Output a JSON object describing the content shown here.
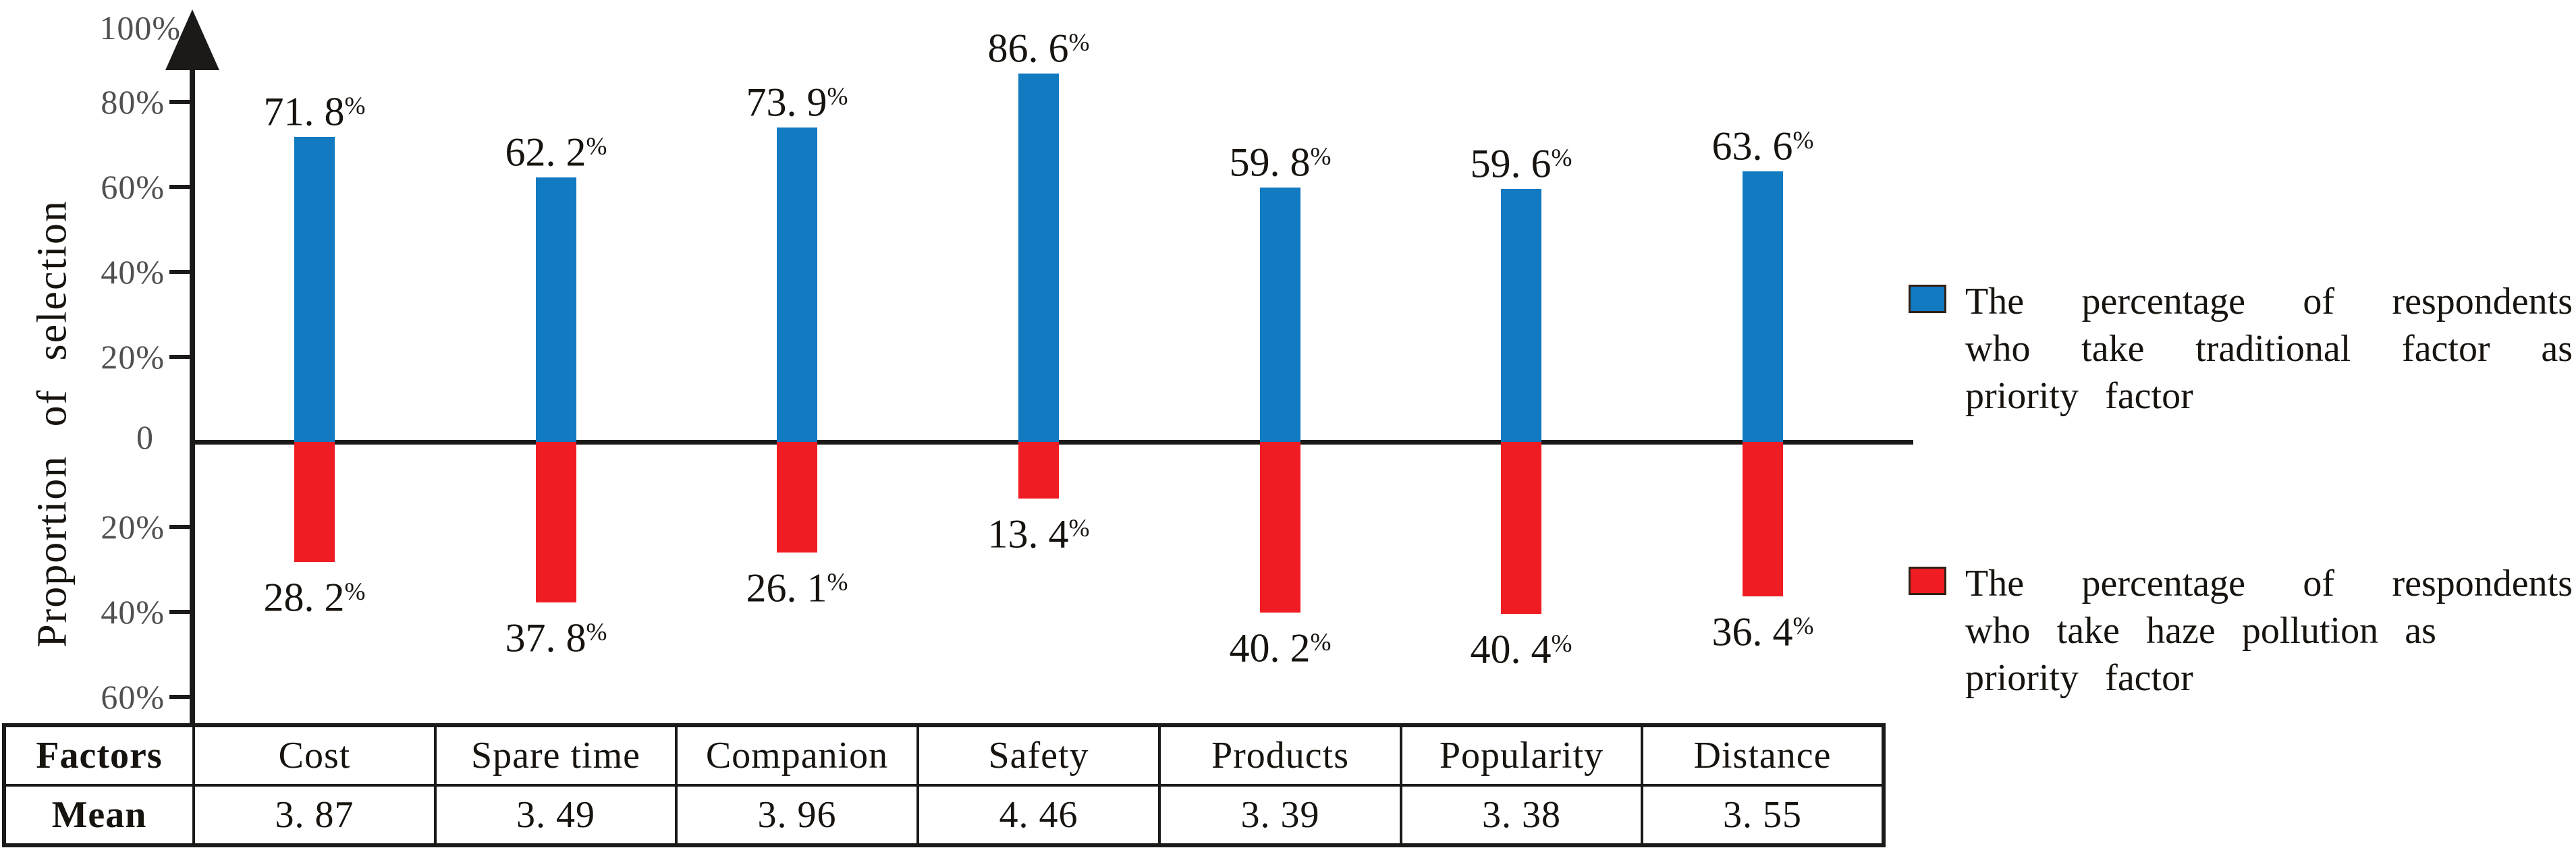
{
  "colors": {
    "traditional_blue": "#117ac0",
    "haze_red": "#f01c23",
    "axis_black": "#1c1a19",
    "tick_gray": "#505052"
  },
  "chart_data": {
    "type": "bar",
    "title": "",
    "xlabel": "",
    "ylabel": "Proportion of selection",
    "ylim": [
      -60,
      100
    ],
    "grid": false,
    "legend_position": "right",
    "categories": [
      "Cost",
      "Spare time",
      "Companion",
      "Safety",
      "Products",
      "Popularity",
      "Distance"
    ],
    "series": [
      {
        "name": "The percentage of respondents who take traditional factor as priority factor",
        "direction": "up",
        "values": [
          71.8,
          62.2,
          73.9,
          86.6,
          59.8,
          59.6,
          63.6
        ],
        "labels": [
          "71. 8%",
          "62. 2%",
          "73. 9%",
          "86. 6%",
          "59. 8%",
          "59. 6%",
          "63. 6%"
        ]
      },
      {
        "name": "The percentage of respondents who take haze pollution as priority factor",
        "direction": "down",
        "values": [
          28.2,
          37.8,
          26.1,
          13.4,
          40.2,
          40.4,
          36.4
        ],
        "labels": [
          "28. 2%",
          "37. 8%",
          "26. 1%",
          "13. 4%",
          "40. 2%",
          "40. 4%",
          "36. 4%"
        ]
      }
    ],
    "means": [
      3.87,
      3.49,
      3.96,
      4.46,
      3.39,
      3.38,
      3.55
    ],
    "y_axis": {
      "top_label": "100%",
      "zero_label": "0",
      "ticks_up": [
        {
          "value": 80,
          "label": "80%"
        },
        {
          "value": 60,
          "label": "60%"
        },
        {
          "value": 40,
          "label": "40%"
        },
        {
          "value": 20,
          "label": "20%"
        }
      ],
      "ticks_down": [
        {
          "value": 20,
          "label": "20%"
        },
        {
          "value": 40,
          "label": "40%"
        },
        {
          "value": 60,
          "label": "60%"
        }
      ]
    }
  },
  "table": {
    "row1_header": "Factors",
    "row2_header": "Mean",
    "factors": [
      "Cost",
      "Spare time",
      "Companion",
      "Safety",
      "Products",
      "Popularity",
      "Distance"
    ],
    "means_display": [
      "3. 87",
      "3. 49",
      "3. 96",
      "4. 46",
      "3. 39",
      "3. 38",
      "3. 55"
    ]
  },
  "legend": {
    "items": [
      {
        "key": "traditional",
        "color": "#117ac0",
        "lines": [
          "The percentage of respondents",
          "who take traditional factor as",
          "priority factor"
        ]
      },
      {
        "key": "haze",
        "color": "#f01c23",
        "lines": [
          "The percentage of respondents",
          "who take haze pollution as",
          "priority factor"
        ]
      }
    ]
  }
}
